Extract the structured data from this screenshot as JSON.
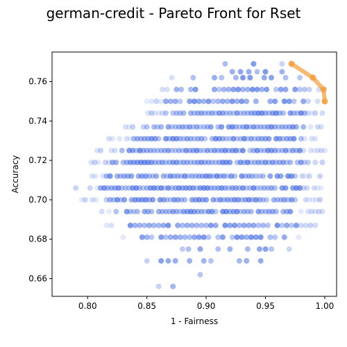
{
  "chart_data": {
    "type": "scatter",
    "title": "german-credit - Pareto Front for Rset",
    "xlabel": "1 - Fairness",
    "ylabel": "Accuracy",
    "xlim": [
      0.77,
      1.01
    ],
    "ylim": [
      0.651,
      0.775
    ],
    "xticks": [
      {
        "value": 0.8,
        "label": "0.80"
      },
      {
        "value": 0.85,
        "label": "0.85"
      },
      {
        "value": 0.9,
        "label": "0.90"
      },
      {
        "value": 0.95,
        "label": "0.95"
      },
      {
        "value": 1.0,
        "label": "1.00"
      }
    ],
    "yticks": [
      {
        "value": 0.66,
        "label": "0.66"
      },
      {
        "value": 0.68,
        "label": "0.68"
      },
      {
        "value": 0.7,
        "label": "0.70"
      },
      {
        "value": 0.72,
        "label": "0.72"
      },
      {
        "value": 0.74,
        "label": "0.74"
      },
      {
        "value": 0.76,
        "label": "0.76"
      }
    ],
    "grid": false,
    "legend": "none",
    "series": [
      {
        "kind": "scatter",
        "color": "#4169e1",
        "rows": [
          {
            "y": 0.769,
            "xmin": 0.9,
            "xmax": 0.968,
            "step": 0.008,
            "density": 0.4
          },
          {
            "y": 0.765,
            "xmin": 0.915,
            "xmax": 0.97,
            "step": 0.007,
            "density": 0.5
          },
          {
            "y": 0.762,
            "xmin": 0.865,
            "xmax": 0.995,
            "step": 0.006,
            "density": 0.45
          },
          {
            "y": 0.756,
            "xmin": 0.855,
            "xmax": 1.0,
            "step": 0.004,
            "density": 0.85
          },
          {
            "y": 0.75,
            "xmin": 0.85,
            "xmax": 1.0,
            "step": 0.004,
            "density": 0.85
          },
          {
            "y": 0.744,
            "xmin": 0.848,
            "xmax": 1.0,
            "step": 0.003,
            "density": 0.95
          },
          {
            "y": 0.737,
            "xmin": 0.832,
            "xmax": 1.0,
            "step": 0.003,
            "density": 0.95
          },
          {
            "y": 0.731,
            "xmin": 0.818,
            "xmax": 1.0,
            "step": 0.003,
            "density": 0.98
          },
          {
            "y": 0.725,
            "xmin": 0.808,
            "xmax": 1.0,
            "step": 0.003,
            "density": 0.98
          },
          {
            "y": 0.719,
            "xmin": 0.8,
            "xmax": 1.0,
            "step": 0.003,
            "density": 0.98
          },
          {
            "y": 0.712,
            "xmin": 0.795,
            "xmax": 1.0,
            "step": 0.003,
            "density": 0.98
          },
          {
            "y": 0.706,
            "xmin": 0.79,
            "xmax": 1.0,
            "step": 0.003,
            "density": 0.98
          },
          {
            "y": 0.7,
            "xmin": 0.795,
            "xmax": 1.0,
            "step": 0.003,
            "density": 0.95
          },
          {
            "y": 0.694,
            "xmin": 0.8,
            "xmax": 0.998,
            "step": 0.003,
            "density": 0.9
          },
          {
            "y": 0.687,
            "xmin": 0.808,
            "xmax": 0.998,
            "step": 0.004,
            "density": 0.85
          },
          {
            "y": 0.681,
            "xmin": 0.83,
            "xmax": 0.99,
            "step": 0.004,
            "density": 0.7
          },
          {
            "y": 0.675,
            "xmin": 0.84,
            "xmax": 0.98,
            "step": 0.005,
            "density": 0.6
          },
          {
            "y": 0.669,
            "xmin": 0.85,
            "xmax": 0.96,
            "step": 0.006,
            "density": 0.45
          },
          {
            "y": 0.662,
            "xmin": 0.855,
            "xmax": 0.9,
            "step": 0.008,
            "density": 0.4
          },
          {
            "y": 0.656,
            "xmin": 0.86,
            "xmax": 0.89,
            "step": 0.012,
            "density": 0.4
          }
        ]
      },
      {
        "kind": "pareto-line",
        "color": "#f5a142",
        "points": [
          {
            "x": 0.972,
            "y": 0.769
          },
          {
            "x": 0.99,
            "y": 0.762
          },
          {
            "x": 0.999,
            "y": 0.756
          },
          {
            "x": 1.0,
            "y": 0.75
          }
        ]
      }
    ]
  }
}
